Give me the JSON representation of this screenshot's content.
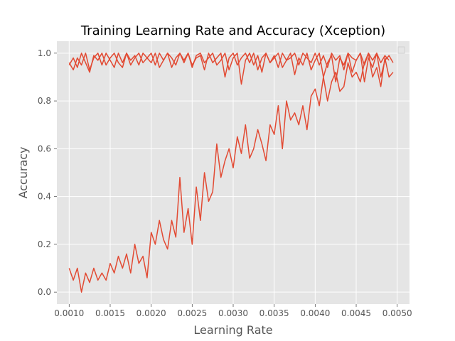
{
  "chart_data": {
    "type": "line",
    "title": "Training Learning Rate and Accuracy (Xception)",
    "xlabel": "Learning Rate",
    "ylabel": "Accuracy",
    "xlim": [
      0.00085,
      0.00515
    ],
    "ylim": [
      -0.05,
      1.05
    ],
    "x_ticks": [
      0.001,
      0.0015,
      0.002,
      0.0025,
      0.003,
      0.0035,
      0.004,
      0.0045,
      0.005
    ],
    "x_tick_labels": [
      "0.0010",
      "0.0015",
      "0.0020",
      "0.0025",
      "0.0030",
      "0.0035",
      "0.0040",
      "0.0045",
      "0.0050"
    ],
    "y_ticks": [
      0.0,
      0.2,
      0.4,
      0.6,
      0.8,
      1.0
    ],
    "y_tick_labels": [
      "0.0",
      "0.2",
      "0.4",
      "0.6",
      "0.8",
      "1.0"
    ],
    "grid": true,
    "legend": "top-right (empty)",
    "style": "ggplot",
    "colors": {
      "line": "#E24A33",
      "plot_bg": "#E5E5E5",
      "grid": "#FFFFFF",
      "text": "#555555"
    },
    "series": [
      {
        "x": [
          0.001,
          0.00105,
          0.0011,
          0.00115,
          0.0012,
          0.00125,
          0.0013,
          0.00135,
          0.0014,
          0.00145,
          0.0015,
          0.00155,
          0.0016,
          0.00165,
          0.0017,
          0.00175,
          0.0018,
          0.00185,
          0.0019,
          0.00195,
          0.002,
          0.00205,
          0.0021,
          0.00215,
          0.0022,
          0.00225,
          0.0023,
          0.00235,
          0.0024,
          0.00245,
          0.0025,
          0.00255,
          0.0026,
          0.00265,
          0.0027,
          0.00275,
          0.0028,
          0.00285,
          0.0029,
          0.00295,
          0.003,
          0.00305,
          0.0031,
          0.00315,
          0.0032,
          0.00325,
          0.0033,
          0.00335,
          0.0034,
          0.00345,
          0.0035,
          0.00355,
          0.0036,
          0.00365,
          0.0037,
          0.00375,
          0.0038,
          0.00385,
          0.0039,
          0.00395,
          0.004,
          0.00405,
          0.0041,
          0.00415,
          0.0042,
          0.00425,
          0.0043,
          0.00435,
          0.0044,
          0.00445,
          0.0045,
          0.00455,
          0.0046,
          0.00465,
          0.0047,
          0.00475,
          0.0048,
          0.00485,
          0.0049
        ],
        "values": [
          0.96,
          0.93,
          0.98,
          0.95,
          1.0,
          0.93,
          0.98,
          1.0,
          0.95,
          1.0,
          0.97,
          0.94,
          1.0,
          0.96,
          1.0,
          0.95,
          0.98,
          1.0,
          0.96,
          0.98,
          1.0,
          0.95,
          1.0,
          0.97,
          1.0,
          0.94,
          0.98,
          1.0,
          0.96,
          1.0,
          0.95,
          0.98,
          0.99,
          0.93,
          1.0,
          0.96,
          0.98,
          1.0,
          0.9,
          0.98,
          1.0,
          0.95,
          0.98,
          1.0,
          0.96,
          1.0,
          0.93,
          0.98,
          1.0,
          0.96,
          0.99,
          0.94,
          1.0,
          0.97,
          0.98,
          1.0,
          0.95,
          1.0,
          0.98,
          0.96,
          1.0,
          0.95,
          0.99,
          0.94,
          1.0,
          0.97,
          0.99,
          0.93,
          1.0,
          0.98,
          0.97,
          1.0,
          0.95,
          1.0,
          0.97,
          1.0,
          0.96,
          0.99,
          0.97
        ]
      },
      {
        "x": [
          0.001,
          0.00105,
          0.0011,
          0.00115,
          0.0012,
          0.00125,
          0.0013,
          0.00135,
          0.0014,
          0.00145,
          0.0015,
          0.00155,
          0.0016,
          0.00165,
          0.0017,
          0.00175,
          0.0018,
          0.00185,
          0.0019,
          0.00195,
          0.002,
          0.00205,
          0.0021,
          0.00215,
          0.0022,
          0.00225,
          0.0023,
          0.00235,
          0.0024,
          0.00245,
          0.0025,
          0.00255,
          0.0026,
          0.00265,
          0.0027,
          0.00275,
          0.0028,
          0.00285,
          0.0029,
          0.00295,
          0.003,
          0.00305,
          0.0031,
          0.00315,
          0.0032,
          0.00325,
          0.0033,
          0.00335,
          0.0034,
          0.00345,
          0.0035,
          0.00355,
          0.0036,
          0.00365,
          0.0037,
          0.00375,
          0.0038,
          0.00385,
          0.0039,
          0.00395,
          0.004,
          0.00405,
          0.0041,
          0.00415,
          0.0042,
          0.00425,
          0.0043,
          0.00435,
          0.0044,
          0.00445,
          0.0045,
          0.00455,
          0.0046,
          0.00465,
          0.0047,
          0.00475,
          0.0048,
          0.00485,
          0.0049,
          0.00495
        ],
        "values": [
          0.95,
          0.98,
          0.94,
          1.0,
          0.96,
          0.92,
          0.99,
          0.97,
          1.0,
          0.95,
          0.98,
          1.0,
          0.96,
          0.94,
          1.0,
          0.97,
          0.99,
          0.95,
          1.0,
          0.98,
          0.96,
          1.0,
          0.94,
          0.97,
          1.0,
          0.98,
          0.95,
          1.0,
          0.97,
          1.0,
          0.94,
          0.99,
          1.0,
          0.96,
          0.98,
          1.0,
          0.95,
          0.97,
          1.0,
          0.93,
          0.98,
          1.0,
          0.87,
          0.97,
          1.0,
          0.95,
          0.99,
          0.92,
          1.0,
          0.96,
          0.98,
          1.0,
          0.94,
          0.97,
          1.0,
          0.91,
          0.98,
          0.95,
          1.0,
          0.93,
          0.97,
          1.0,
          0.9,
          0.96,
          0.99,
          0.88,
          0.98,
          0.95,
          1.0,
          0.92,
          0.97,
          1.0,
          0.88,
          0.98,
          0.94,
          1.0,
          0.9,
          0.97,
          0.99,
          0.96
        ]
      },
      {
        "x": [
          0.001,
          0.00105,
          0.0011,
          0.00115,
          0.0012,
          0.00125,
          0.0013,
          0.00135,
          0.0014,
          0.00145,
          0.0015,
          0.00155,
          0.0016,
          0.00165,
          0.0017,
          0.00175,
          0.0018,
          0.00185,
          0.0019,
          0.00195,
          0.002,
          0.00205,
          0.0021,
          0.00215,
          0.0022,
          0.00225,
          0.0023,
          0.00235,
          0.0024,
          0.00245,
          0.0025,
          0.00255,
          0.0026,
          0.00265,
          0.0027,
          0.00275,
          0.0028,
          0.00285,
          0.0029,
          0.00295,
          0.003,
          0.00305,
          0.0031,
          0.00315,
          0.0032,
          0.00325,
          0.0033,
          0.00335,
          0.0034,
          0.00345,
          0.0035,
          0.00355,
          0.0036,
          0.00365,
          0.0037,
          0.00375,
          0.0038,
          0.00385,
          0.0039,
          0.00395,
          0.004,
          0.00405,
          0.0041,
          0.00415,
          0.0042,
          0.00425,
          0.0043,
          0.00435,
          0.0044,
          0.00445,
          0.0045,
          0.00455,
          0.0046,
          0.00465,
          0.0047,
          0.00475,
          0.0048,
          0.00485,
          0.0049,
          0.00495
        ],
        "values": [
          0.1,
          0.05,
          0.1,
          0.0,
          0.08,
          0.04,
          0.1,
          0.05,
          0.08,
          0.05,
          0.12,
          0.08,
          0.15,
          0.1,
          0.16,
          0.08,
          0.2,
          0.12,
          0.15,
          0.06,
          0.25,
          0.2,
          0.3,
          0.22,
          0.18,
          0.3,
          0.23,
          0.48,
          0.25,
          0.35,
          0.2,
          0.44,
          0.3,
          0.5,
          0.38,
          0.42,
          0.62,
          0.48,
          0.55,
          0.6,
          0.52,
          0.65,
          0.58,
          0.7,
          0.56,
          0.6,
          0.68,
          0.62,
          0.55,
          0.7,
          0.66,
          0.78,
          0.6,
          0.8,
          0.72,
          0.75,
          0.7,
          0.78,
          0.68,
          0.82,
          0.85,
          0.78,
          0.9,
          0.8,
          0.88,
          0.92,
          0.84,
          0.86,
          0.96,
          0.9,
          0.92,
          0.88,
          0.96,
          1.0,
          0.9,
          0.94,
          0.86,
          0.98,
          0.9,
          0.92
        ]
      }
    ]
  }
}
